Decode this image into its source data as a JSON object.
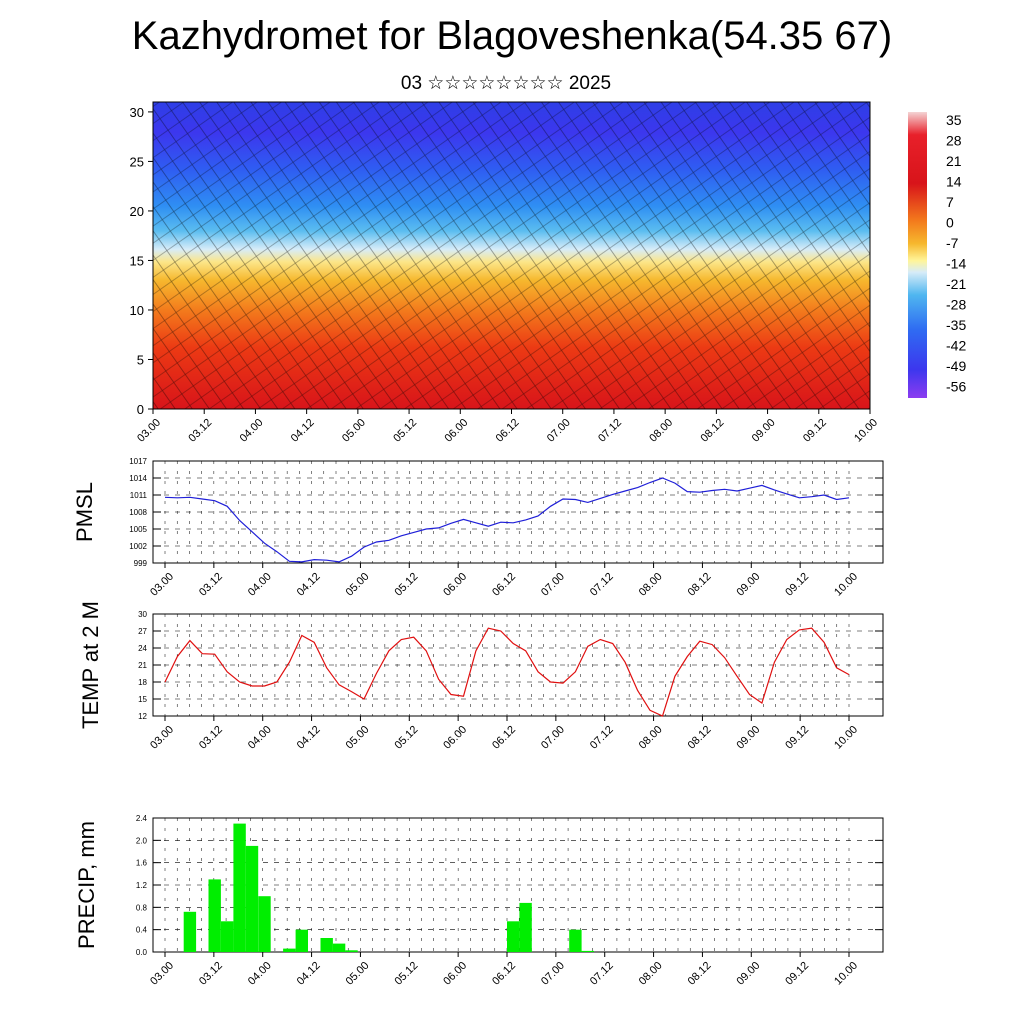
{
  "header": {
    "title": "Kazhydromet for Blagoveshenka(54.35 67)",
    "subtitle": "03 ☆☆☆☆☆☆☆☆ 2025"
  },
  "colorbar": {
    "labels": [
      "35",
      "28",
      "21",
      "14",
      "7",
      "0",
      "-7",
      "-14",
      "-21",
      "-28",
      "-35",
      "-42",
      "-49",
      "-56"
    ]
  },
  "time_labels": [
    "03.00",
    "03.12",
    "04.00",
    "04.12",
    "05.00",
    "05.12",
    "06.00",
    "06.12",
    "07.00",
    "07.12",
    "08.00",
    "08.12",
    "09.00",
    "09.12",
    "10.00"
  ],
  "chart_data": [
    {
      "type": "heatmap",
      "title": "",
      "x": [
        "03.00",
        "03.12",
        "04.00",
        "04.12",
        "05.00",
        "05.12",
        "06.00",
        "06.12",
        "07.00",
        "07.12",
        "08.00",
        "08.12",
        "09.00",
        "09.12",
        "10.00"
      ],
      "ylim": [
        0,
        31
      ],
      "yticks": [
        0,
        5,
        10,
        15,
        20,
        25,
        30
      ],
      "color_scale": [
        35,
        28,
        21,
        14,
        7,
        0,
        -7,
        -14,
        -21,
        -28,
        -35,
        -42,
        -49,
        -56
      ],
      "overlay": "wind barbs",
      "colors": {
        "warm": "#e8201a",
        "mid": "#f3c33a",
        "cool": "#3fb0ef",
        "cold": "#4f3ff0"
      }
    },
    {
      "type": "line",
      "ylabel": "PMSL",
      "ylim": [
        999,
        1017
      ],
      "yticks": [
        999,
        1002,
        1005,
        1008,
        1011,
        1014,
        1017
      ],
      "color": "#1f1fd8",
      "values": [
        1010.6,
        1010.5,
        1010.6,
        1010.3,
        1010.0,
        1009.0,
        1006.5,
        1004.5,
        1002.5,
        1001.0,
        999.3,
        999.2,
        999.6,
        999.5,
        999.2,
        1000.2,
        1001.8,
        1002.7,
        1003.0,
        1003.8,
        1004.4,
        1005.0,
        1005.2,
        1006.0,
        1006.7,
        1006.1,
        1005.5,
        1006.2,
        1006.1,
        1006.6,
        1007.3,
        1009.0,
        1010.3,
        1010.2,
        1009.7,
        1010.4,
        1011.1,
        1011.7,
        1012.3,
        1013.2,
        1014.0,
        1013.1,
        1011.6,
        1011.5,
        1011.8,
        1012.0,
        1011.7,
        1012.2,
        1012.7,
        1011.9,
        1011.2,
        1010.5,
        1010.7,
        1011.0,
        1010.2,
        1010.5
      ]
    },
    {
      "type": "line",
      "ylabel": "TEMP at 2 M",
      "ylim": [
        12,
        30
      ],
      "yticks": [
        12,
        15,
        18,
        21,
        24,
        27,
        30
      ],
      "color": "#e01010",
      "values": [
        18.0,
        22.5,
        25.3,
        23.0,
        22.9,
        19.8,
        18.0,
        17.3,
        17.3,
        18.0,
        21.5,
        26.2,
        25.0,
        20.5,
        17.5,
        16.3,
        15.0,
        19.5,
        23.5,
        25.5,
        25.9,
        23.5,
        18.5,
        15.8,
        15.5,
        23.5,
        27.5,
        27.0,
        24.8,
        23.5,
        19.8,
        18.0,
        17.8,
        19.8,
        24.3,
        25.5,
        24.8,
        21.5,
        16.5,
        13.0,
        12.0,
        19.0,
        22.5,
        25.2,
        24.6,
        22.3,
        19.0,
        15.8,
        14.3,
        21.5,
        25.5,
        27.2,
        27.5,
        25.0,
        20.5,
        19.3
      ]
    },
    {
      "type": "bar",
      "ylabel": "PRECIP, mm",
      "ylim": [
        0,
        2.4
      ],
      "yticks": [
        "0.0",
        "0.4",
        "0.8",
        "1.2",
        "1.6",
        "2.0",
        "2.4"
      ],
      "color": "#00ee00",
      "values": [
        0,
        0,
        0.72,
        0,
        1.3,
        0.55,
        2.3,
        1.9,
        1.0,
        0,
        0.06,
        0.4,
        0,
        0.25,
        0.15,
        0.03,
        0,
        0,
        0,
        0,
        0,
        0,
        0,
        0,
        0,
        0,
        0,
        0,
        0.55,
        0.88,
        0,
        0,
        0,
        0.4,
        0.02,
        0,
        0,
        0,
        0,
        0,
        0,
        0,
        0,
        0,
        0,
        0,
        0,
        0,
        0,
        0,
        0,
        0,
        0,
        0,
        0,
        0
      ]
    }
  ]
}
